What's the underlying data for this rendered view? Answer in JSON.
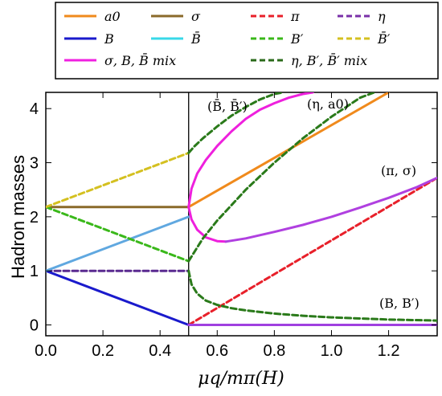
{
  "chart_data": {
    "type": "line",
    "xlabel": "μq/mπ(H)",
    "ylabel": "Hadron masses",
    "xlim": [
      0,
      1.37
    ],
    "ylim": [
      -0.2,
      4.3
    ],
    "x_ticks": [
      "0.0",
      "0.2",
      "0.4",
      "0.6",
      "0.8",
      "1.0",
      "1.2"
    ],
    "y_ticks": [
      "0",
      "1",
      "2",
      "3",
      "4"
    ],
    "vline_x": 0.5,
    "legend_placement": "top (boxed, 3 rows)",
    "legend": [
      {
        "label": "a0",
        "color": "#f08a1c",
        "dash": false
      },
      {
        "label": "σ",
        "color": "#8a6a2a",
        "dash": false
      },
      {
        "label": "π",
        "color": "#e8202a",
        "dash": true
      },
      {
        "label": "η",
        "color": "#7a30a8",
        "dash": true
      },
      {
        "label": "B",
        "color": "#1a1acc",
        "dash": false
      },
      {
        "label": "B̄",
        "color": "#38d8e8",
        "dash": false
      },
      {
        "label": "B′",
        "color": "#3ab81a",
        "dash": true
      },
      {
        "label": "B̄′",
        "color": "#d4c020",
        "dash": true
      },
      {
        "label": "σ, B, B̄ mix",
        "color": "#f020e0",
        "dash": false
      },
      {
        "label": "η, B′, B̄′ mix",
        "color": "#2a6a1a",
        "dash": true
      }
    ],
    "annotations": [
      "(B̄, B̄′)",
      "(η, a0)",
      "(π, σ)",
      "(B, B′)"
    ],
    "series": [
      {
        "name": "a0",
        "color": "#f08a1c",
        "dash": false,
        "x": [
          0.5,
          1.2
        ],
        "y": [
          2.18,
          4.3
        ]
      },
      {
        "name": "σ",
        "color": "#8a6a2a",
        "dash": false,
        "x": [
          0,
          0.5
        ],
        "y": [
          2.18,
          2.18
        ]
      },
      {
        "name": "π",
        "color": "#e8202a",
        "dash": true,
        "x": [
          0.5,
          1.37
        ],
        "y": [
          0.0,
          2.72
        ]
      },
      {
        "name": "η",
        "color": "#5a2a90",
        "dash": true,
        "x": [
          0,
          0.5
        ],
        "y": [
          1.0,
          1.0
        ]
      },
      {
        "name": "B",
        "color": "#1a1acc",
        "dash": false,
        "x": [
          0,
          0.5
        ],
        "y": [
          1.0,
          0.0
        ]
      },
      {
        "name": "B̄",
        "color": "#60a8e0",
        "dash": false,
        "x": [
          0,
          0.5
        ],
        "y": [
          1.0,
          2.0
        ]
      },
      {
        "name": "B′",
        "color": "#3ab81a",
        "dash": true,
        "x": [
          0,
          0.5
        ],
        "y": [
          2.18,
          1.18
        ]
      },
      {
        "name": "B̄′",
        "color": "#d4c020",
        "dash": true,
        "x": [
          0,
          0.5
        ],
        "y": [
          2.18,
          3.18
        ]
      },
      {
        "name": "σ, B, B̄ mix",
        "color": "#ee20dd",
        "dash": false,
        "x": [
          0.5,
          0.51,
          0.53,
          0.56,
          0.6,
          0.65,
          0.7,
          0.75,
          0.8,
          0.85,
          0.9,
          0.935
        ],
        "y": [
          2.18,
          2.52,
          2.8,
          3.05,
          3.31,
          3.58,
          3.81,
          3.98,
          4.1,
          4.2,
          4.27,
          4.3
        ]
      },
      {
        "name": "σ, B, B̄ mix",
        "color": "#ee20dd",
        "dash": false,
        "x": [
          0.5,
          0.51,
          0.53,
          0.56,
          0.6,
          0.63
        ],
        "y": [
          2.18,
          1.95,
          1.76,
          1.62,
          1.55,
          1.54
        ]
      },
      {
        "name": "σ, B, B̄ mix",
        "color": "#b040e0",
        "dash": false,
        "x": [
          0.63,
          0.7,
          0.8,
          0.9,
          1.0,
          1.1,
          1.2,
          1.3,
          1.37
        ],
        "y": [
          1.54,
          1.6,
          1.72,
          1.85,
          2.0,
          2.17,
          2.35,
          2.55,
          2.72
        ]
      },
      {
        "name": "σ, B, B̄ mix",
        "color": "#a040e0",
        "dash": false,
        "x": [
          0.5,
          1.37
        ],
        "y": [
          0.0,
          0.0
        ]
      },
      {
        "name": "η, B′, B̄′ mix",
        "color": "#2a7a1a",
        "dash": true,
        "x": [
          0.5,
          0.52,
          0.55,
          0.6,
          0.65,
          0.7,
          0.75,
          0.8,
          0.83
        ],
        "y": [
          3.18,
          3.3,
          3.45,
          3.67,
          3.87,
          4.03,
          4.17,
          4.27,
          4.3
        ]
      },
      {
        "name": "η, B′, B̄′ mix",
        "color": "#2a7a1a",
        "dash": true,
        "x": [
          0.5,
          0.55,
          0.6,
          0.7,
          0.8,
          0.9,
          1.0,
          1.1,
          1.15
        ],
        "y": [
          1.18,
          1.6,
          1.93,
          2.5,
          3.0,
          3.45,
          3.85,
          4.2,
          4.3
        ]
      },
      {
        "name": "η, B′, B̄′ mix",
        "color": "#2a7a1a",
        "dash": true,
        "x": [
          0.5,
          0.51,
          0.53,
          0.56,
          0.6,
          0.65,
          0.7,
          0.8,
          0.9,
          1.0,
          1.1,
          1.2,
          1.37
        ],
        "y": [
          1.0,
          0.75,
          0.58,
          0.45,
          0.37,
          0.31,
          0.27,
          0.21,
          0.17,
          0.14,
          0.12,
          0.1,
          0.08
        ]
      }
    ]
  }
}
